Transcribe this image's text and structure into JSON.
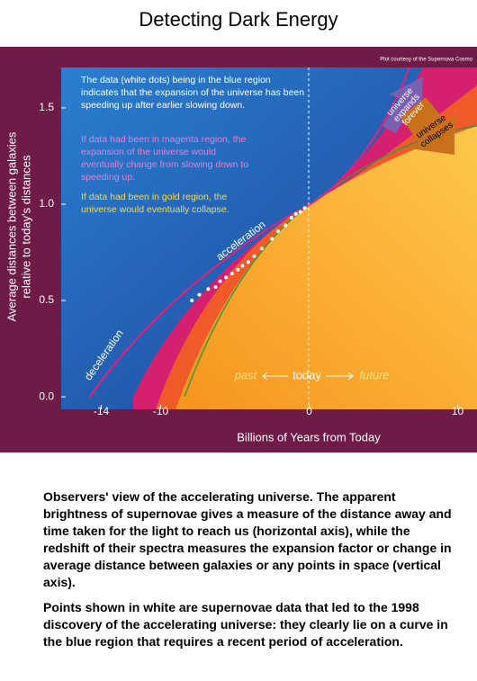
{
  "title": "Detecting Dark Energy",
  "chart_data": {
    "type": "scatter",
    "credit": "Plot courtesy of the Supernova Cosmo",
    "xlabel": "Billions of Years from Today",
    "ylabel": [
      "Average distances between galaxies",
      "relative to today's distances"
    ],
    "xlim": [
      -16.7,
      11.3
    ],
    "xticks": [
      -14,
      -10,
      0,
      10
    ],
    "ylim": [
      -0.065,
      1.71
    ],
    "yticks": [
      {
        "value": 0,
        "label": "0.0"
      },
      0.5,
      {
        "value": 1,
        "label": "1.0"
      },
      1.5
    ],
    "series": [
      {
        "color": "#ffffff",
        "x": [
          -7.9,
          -7.4,
          -6.8,
          -6.3,
          -6.0,
          -5.6,
          -5.2,
          -4.8,
          -4.5,
          -4.1,
          -3.7,
          -3.2,
          -2.5,
          -2.1,
          -1.6,
          -1.2,
          -0.9,
          -0.6,
          -0.3
        ],
        "values": [
          0.5,
          0.53,
          0.56,
          0.57,
          0.6,
          0.62,
          0.64,
          0.66,
          0.68,
          0.7,
          0.73,
          0.77,
          0.82,
          0.86,
          0.89,
          0.93,
          0.95,
          0.96,
          0.98
        ]
      }
    ],
    "annotations": {
      "blue": "The data (white dots) being in the blue region indicates that the expansion of the universe has been speeding up after earlier slowing down.",
      "magenta": "If data had been in magenta region, the expansion of the universe would eventually change from slowing down to speeding up.",
      "gold": "If data had been in gold region, the universe would eventually collapse.",
      "acceleration": "acceleration",
      "deceleration": "deceleration",
      "past": "past",
      "today": "today",
      "future": "future",
      "expands": [
        "universe",
        "expands",
        "forever"
      ],
      "collapses": [
        "universe",
        "collapses"
      ]
    }
  },
  "caption": [
    "Observers' view of the accelerating universe. The apparent brightness of supernovae gives a measure of the distance away and time taken for the light to reach us (horizontal axis), while the redshift of their spectra measures the expansion factor or change in average distance between galaxies or any points in space (vertical axis).",
    "Points shown in white are supernovae data that led to the 1998 discovery of the accelerating universe: they clearly lie on a curve in the blue region that requires a recent period of acceleration."
  ]
}
